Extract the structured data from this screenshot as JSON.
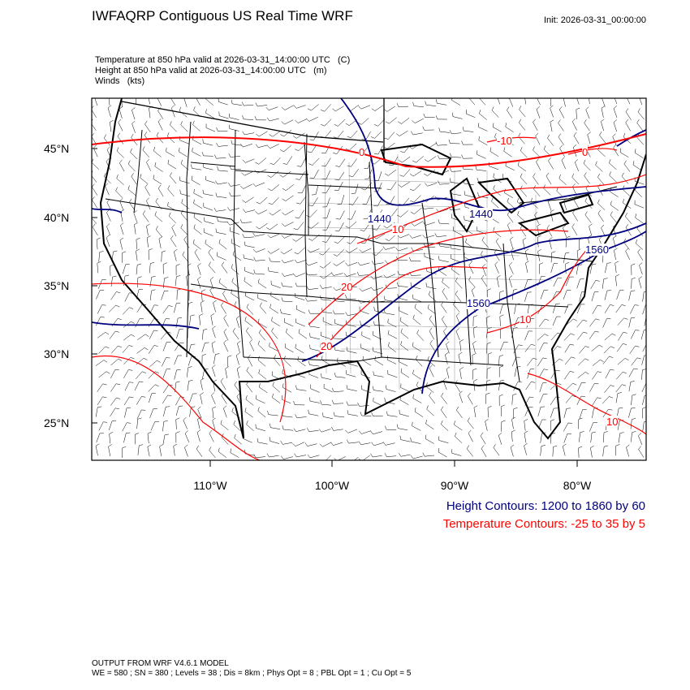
{
  "header": {
    "title": "IWFAQRP Contiguous US Real Time WRF",
    "init": "Init: 2026-03-31_00:00:00",
    "fields": [
      "Temperature at 850 hPa valid at 2026-03-31_14:00:00 UTC   (C)",
      "Height at 850 hPa valid at 2026-03-31_14:00:00 UTC   (m)",
      "Winds   (kts)"
    ]
  },
  "map": {
    "lat_labels": [
      "45°N",
      "40°N",
      "35°N",
      "30°N",
      "25°N"
    ],
    "lon_labels": [
      "110°W",
      "100°W",
      "90°W",
      "80°W"
    ],
    "height_contour_labels": [
      "1440",
      "1440",
      "1560",
      "1560"
    ],
    "temperature_contour_labels": [
      "-10",
      "0",
      "10",
      "20",
      "20",
      "10",
      "0",
      "10"
    ],
    "colors": {
      "height": "#00007f",
      "temperature": "#ff0000",
      "boundaries": "#000000",
      "barbs": "#000000"
    }
  },
  "legend": {
    "height": "Height Contours: 1200 to 1860 by 60",
    "temperature": "Temperature Contours: -25 to 35 by 5"
  },
  "footer": {
    "line1": "OUTPUT FROM WRF V4.6.1 MODEL",
    "line2": "WE = 580 ; SN = 380 ; Levels = 38 ; Dis = 8km ; Phys Opt = 8 ; PBL Opt = 1 ; Cu Opt = 5"
  }
}
